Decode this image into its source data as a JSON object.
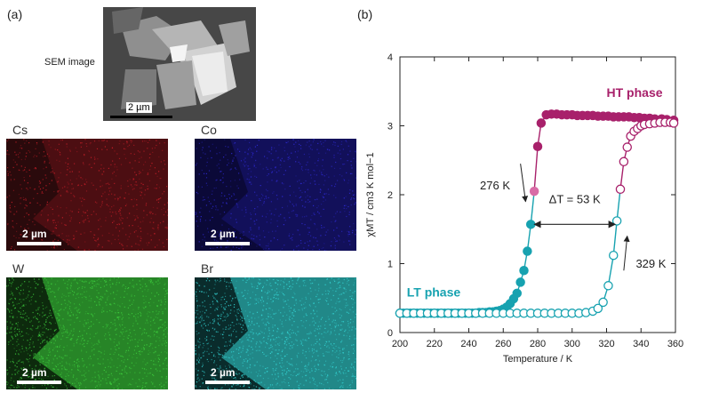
{
  "panel_a": {
    "label": "(a)",
    "sem_label": "SEM image",
    "sem_scale": "2 µm",
    "maps": [
      {
        "element": "Cs",
        "scale": "2 µm",
        "color": "#c81e28",
        "bg": "#2a0a0c"
      },
      {
        "element": "Co",
        "scale": "2 µm",
        "color": "#2f2bd6",
        "bg": "#0b0938"
      },
      {
        "element": "W",
        "scale": "2 µm",
        "color": "#3ecf3e",
        "bg": "#0d2a0d"
      },
      {
        "element": "Br",
        "scale": "2 µm",
        "color": "#34d6d6",
        "bg": "#0a2c2c"
      }
    ]
  },
  "panel_b": {
    "label": "(b)"
  },
  "chart_data": {
    "type": "scatter",
    "xlabel": "Temperature / K",
    "ylabel": "χMT / cm3 K mol−1",
    "xlim": [
      200,
      360
    ],
    "ylim": [
      0,
      4
    ],
    "xticks": [
      200,
      220,
      240,
      260,
      280,
      300,
      320,
      340,
      360
    ],
    "yticks": [
      0,
      1,
      2,
      3,
      4
    ],
    "colors": {
      "ht": "#a8216b",
      "lt": "#17a2b0",
      "ht_light": "#d86ba6"
    },
    "annotations": {
      "ht_phase": "HT phase",
      "lt_phase": "LT phase",
      "t_down": "276 K",
      "t_up": "329 K",
      "delta_t": "ΔT = 53 K"
    },
    "series": [
      {
        "direction": "cooling",
        "marker": "filled",
        "x": [
          359,
          355,
          352,
          348,
          345,
          342,
          339,
          336,
          333,
          330,
          327,
          324,
          321,
          318,
          315,
          312,
          309,
          306,
          303,
          300,
          297,
          294,
          291,
          288,
          285,
          282,
          280,
          278,
          276,
          274,
          272,
          270,
          268,
          266,
          264,
          262,
          260,
          258,
          256,
          254,
          252,
          250,
          248,
          246,
          244,
          242,
          240,
          238,
          236,
          234,
          232,
          230,
          228,
          226,
          224,
          222,
          220,
          218,
          216,
          214,
          212,
          210,
          208,
          206,
          204,
          202,
          200
        ],
        "y": [
          3.08,
          3.09,
          3.1,
          3.1,
          3.11,
          3.11,
          3.12,
          3.12,
          3.13,
          3.13,
          3.13,
          3.13,
          3.14,
          3.14,
          3.14,
          3.15,
          3.15,
          3.15,
          3.15,
          3.16,
          3.16,
          3.16,
          3.17,
          3.17,
          3.16,
          3.04,
          2.7,
          2.05,
          1.57,
          1.18,
          0.9,
          0.73,
          0.57,
          0.49,
          0.42,
          0.37,
          0.34,
          0.32,
          0.31,
          0.3,
          0.3,
          0.29,
          0.29,
          0.29,
          0.28,
          0.28,
          0.28,
          0.28,
          0.28,
          0.28,
          0.28,
          0.28,
          0.28,
          0.28,
          0.28,
          0.28,
          0.28,
          0.28,
          0.28,
          0.28,
          0.28,
          0.28,
          0.28,
          0.28,
          0.28,
          0.28,
          0.28
        ]
      },
      {
        "direction": "heating",
        "marker": "open",
        "x": [
          200,
          204,
          208,
          212,
          216,
          220,
          224,
          228,
          232,
          236,
          240,
          244,
          248,
          252,
          256,
          260,
          264,
          268,
          272,
          276,
          280,
          284,
          288,
          292,
          296,
          300,
          304,
          308,
          312,
          315,
          318,
          321,
          324,
          326,
          328,
          330,
          332,
          334,
          336,
          338,
          340,
          342,
          345,
          348,
          351,
          354,
          357,
          359
        ],
        "y": [
          0.28,
          0.28,
          0.28,
          0.28,
          0.28,
          0.28,
          0.28,
          0.28,
          0.28,
          0.28,
          0.28,
          0.28,
          0.28,
          0.28,
          0.28,
          0.28,
          0.28,
          0.28,
          0.28,
          0.28,
          0.28,
          0.28,
          0.28,
          0.28,
          0.28,
          0.28,
          0.28,
          0.29,
          0.31,
          0.35,
          0.44,
          0.68,
          1.12,
          1.62,
          2.08,
          2.48,
          2.69,
          2.85,
          2.92,
          2.96,
          3.0,
          3.02,
          3.03,
          3.04,
          3.05,
          3.05,
          3.05,
          3.04
        ]
      }
    ]
  }
}
